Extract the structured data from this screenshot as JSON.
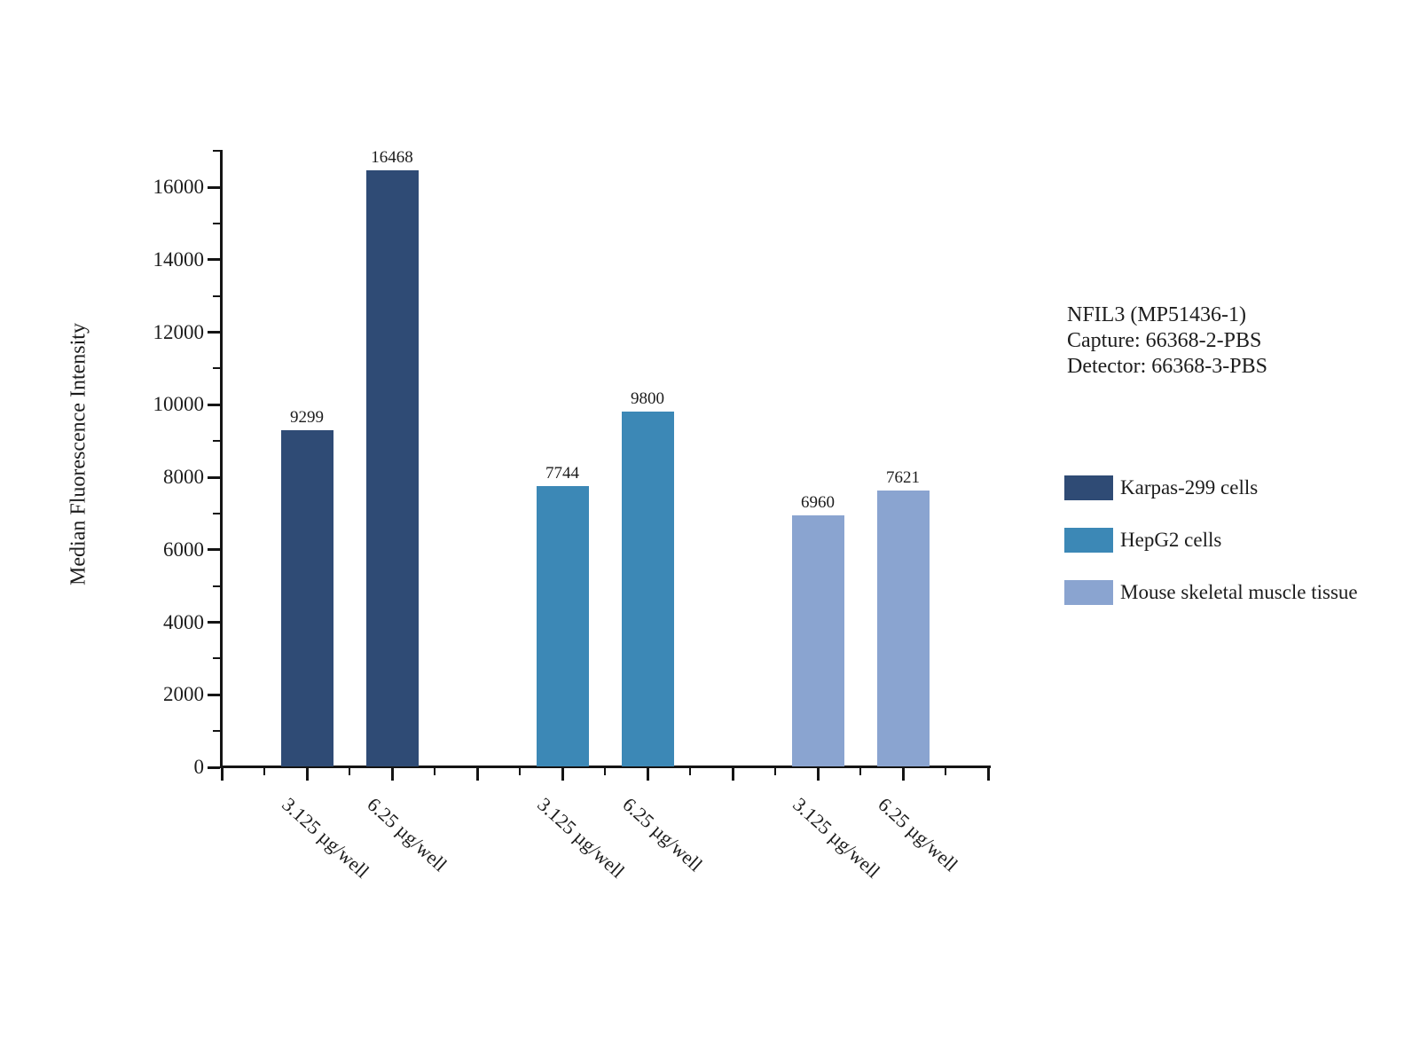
{
  "chart_data": {
    "type": "bar",
    "title": "",
    "xlabel": "",
    "ylabel": "Median Fluorescence Intensity",
    "ylim": [
      0,
      17000
    ],
    "ytick_interval": 2000,
    "ytick_minor_interval": 1000,
    "yticks": [
      0,
      2000,
      4000,
      6000,
      8000,
      10000,
      12000,
      14000,
      16000
    ],
    "grid": false,
    "legend_position": "right-outside",
    "bar_value_labels": true,
    "categories": [
      "3.125 µg/well",
      "6.25 µg/well"
    ],
    "series": [
      {
        "name": "Karpas-299 cells",
        "color": "#2f4b75",
        "values": [
          9299,
          16468
        ]
      },
      {
        "name": "HepG2 cells",
        "color": "#3c88b6",
        "values": [
          7744,
          9800
        ]
      },
      {
        "name": "Mouse skeletal muscle tissue",
        "color": "#8aa4d0",
        "values": [
          6960,
          7621
        ]
      }
    ]
  },
  "annotation": {
    "lines": [
      "NFIL3 (MP51436-1)",
      "Capture: 66368-2-PBS",
      "Detector: 66368-3-PBS"
    ]
  },
  "colors": {
    "axis": "#141414",
    "text": "#1c1c1c",
    "background": "#ffffff"
  }
}
